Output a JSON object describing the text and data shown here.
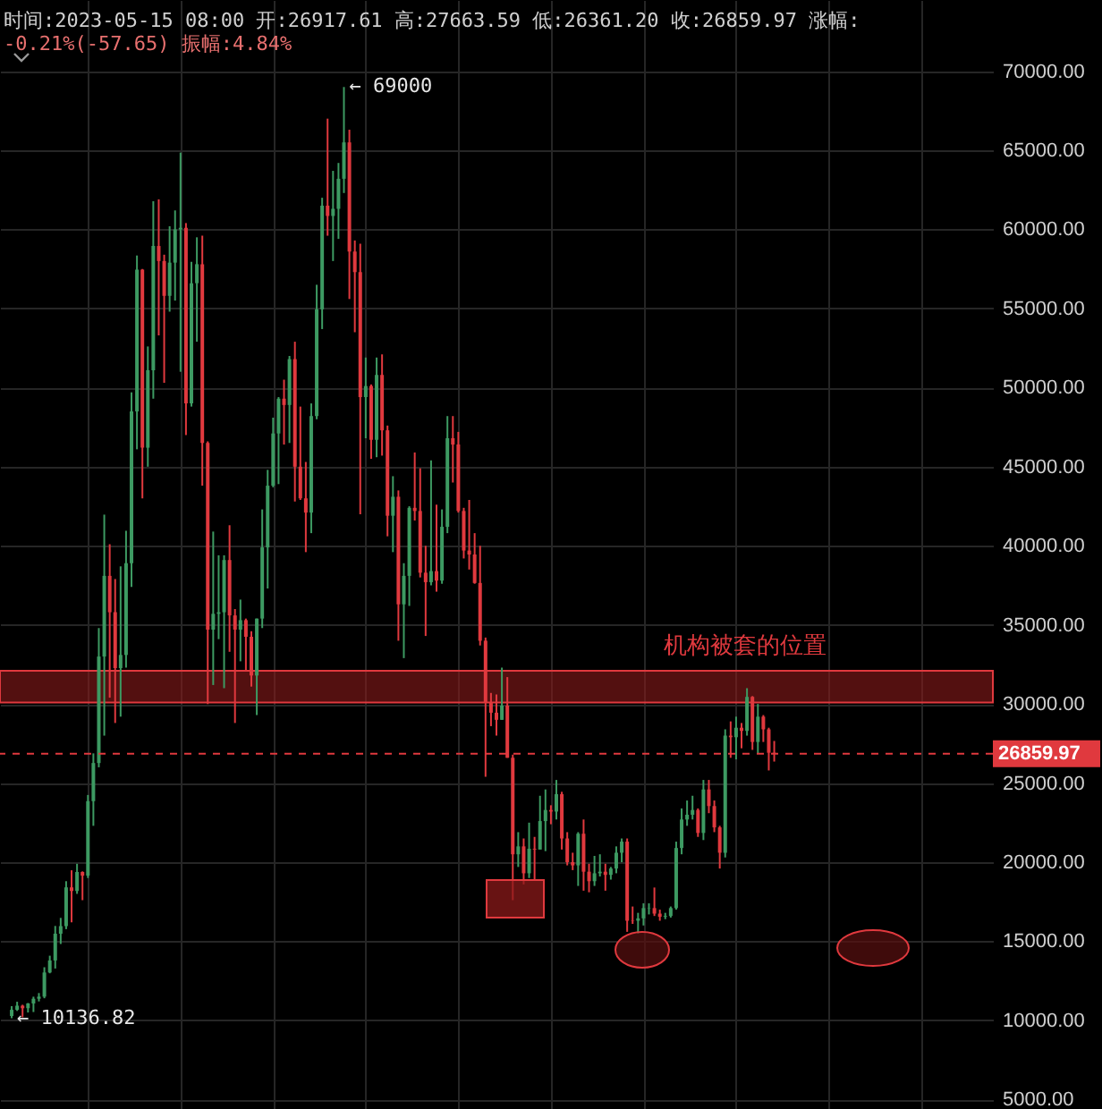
{
  "chart_data": {
    "type": "candlestick",
    "title": "时间:2023-05-15 08:00   开:26917.61   高:27663.59   低:26361.20   收:26859.97   涨幅:",
    "subtitle": "-0.21%(-57.65)   振幅:4.84%",
    "categories": [
      null,
      null,
      null,
      null,
      null,
      null,
      null,
      null,
      null,
      null,
      null,
      null,
      null,
      null,
      null,
      null,
      null,
      null,
      null,
      null,
      null,
      null,
      null,
      null,
      null,
      null,
      null,
      null,
      null,
      null,
      null,
      null,
      null,
      null,
      null,
      null,
      null,
      null,
      null,
      null,
      null,
      null,
      null,
      null,
      null,
      null,
      null,
      null,
      null,
      null,
      null,
      null,
      null,
      null,
      null,
      null,
      null,
      null,
      null,
      null,
      null,
      null,
      null,
      null,
      null,
      null,
      null,
      null,
      null,
      null,
      null,
      null,
      null,
      null,
      null,
      null,
      null,
      null,
      null,
      null,
      null,
      null,
      null,
      null,
      null,
      null,
      null,
      null,
      null,
      null,
      null,
      null,
      null,
      null,
      null,
      null,
      null,
      null,
      null,
      null,
      null,
      null,
      null,
      null,
      null,
      null,
      null,
      null,
      null,
      null,
      null,
      null,
      null,
      null,
      null,
      null,
      null,
      null,
      null,
      null,
      null,
      null,
      null,
      null,
      null,
      null,
      null,
      null,
      null,
      null,
      null,
      null,
      null,
      null,
      null,
      null,
      null,
      null,
      null,
      null,
      null,
      null,
      null,
      null,
      null,
      null,
      null,
      null,
      null,
      null,
      null,
      null,
      null,
      null,
      null,
      null,
      null,
      null,
      null,
      null,
      null,
      null,
      null,
      null,
      null,
      null,
      null,
      null,
      null,
      null,
      null,
      null,
      null,
      null,
      null,
      null,
      null,
      null,
      null
    ],
    "ohlc": [
      [
        10280,
        10900,
        10136.82,
        10670
      ],
      [
        10670,
        11180,
        10600,
        10930
      ],
      [
        10930,
        10990,
        10200,
        10770
      ],
      [
        10770,
        11100,
        10500,
        11070
      ],
      [
        11070,
        11500,
        10530,
        11370
      ],
      [
        11370,
        11730,
        11200,
        11500
      ],
      [
        11500,
        13360,
        11400,
        13030
      ],
      [
        13030,
        14090,
        12980,
        13790
      ],
      [
        13790,
        15970,
        13280,
        15480
      ],
      [
        15480,
        16480,
        14830,
        15960
      ],
      [
        15960,
        18800,
        15770,
        18410
      ],
      [
        18410,
        19490,
        16200,
        18180
      ],
      [
        18180,
        19900,
        18000,
        19380
      ],
      [
        19380,
        19420,
        17600,
        19150
      ],
      [
        19150,
        24250,
        19000,
        23860
      ],
      [
        23860,
        26880,
        22300,
        26270
      ],
      [
        26270,
        34800,
        26000,
        33000
      ],
      [
        33000,
        41970,
        28000,
        38100
      ],
      [
        38100,
        40100,
        30400,
        35800
      ],
      [
        35800,
        37900,
        28800,
        32270
      ],
      [
        32270,
        38700,
        29200,
        33100
      ],
      [
        33100,
        40950,
        32300,
        38900
      ],
      [
        38900,
        49700,
        37400,
        48500
      ],
      [
        48500,
        58350,
        46100,
        57450
      ],
      [
        57450,
        57500,
        43000,
        46200
      ],
      [
        46200,
        52600,
        45000,
        51100
      ],
      [
        51100,
        61780,
        49300,
        58950
      ],
      [
        58950,
        61900,
        53300,
        58000
      ],
      [
        58000,
        58400,
        50300,
        55800
      ],
      [
        55800,
        60200,
        54800,
        57900
      ],
      [
        57900,
        61200,
        55500,
        60000
      ],
      [
        60000,
        64854,
        51000,
        60100
      ],
      [
        60100,
        60400,
        47000,
        49000
      ],
      [
        49000,
        57950,
        48800,
        56600
      ],
      [
        56600,
        59500,
        52900,
        57800
      ],
      [
        57800,
        59600,
        43800,
        46500
      ],
      [
        46500,
        46600,
        30000,
        34700
      ],
      [
        34700,
        40900,
        31200,
        35700
      ],
      [
        35700,
        39400,
        34100,
        35800
      ],
      [
        35800,
        39400,
        31000,
        39100
      ],
      [
        39100,
        41300,
        33300,
        35600
      ],
      [
        35600,
        36000,
        28800,
        34700
      ],
      [
        34700,
        36600,
        32700,
        35300
      ],
      [
        35300,
        35400,
        32100,
        34250
      ],
      [
        34250,
        34600,
        31100,
        31800
      ],
      [
        31800,
        35400,
        29300,
        35400
      ],
      [
        35400,
        42300,
        34800,
        39900
      ],
      [
        39900,
        44800,
        37300,
        43800
      ],
      [
        43800,
        48100,
        43700,
        47100
      ],
      [
        47100,
        49400,
        43900,
        49300
      ],
      [
        49300,
        50500,
        46400,
        48900
      ],
      [
        48900,
        52000,
        46500,
        51800
      ],
      [
        51800,
        52900,
        42800,
        45000
      ],
      [
        45000,
        48800,
        42900,
        43000
      ],
      [
        43000,
        45300,
        39600,
        42100
      ],
      [
        42100,
        49000,
        40800,
        48200
      ],
      [
        48200,
        56500,
        48000,
        54950
      ],
      [
        54950,
        62000,
        53700,
        61500
      ],
      [
        61500,
        67000,
        59600,
        60850
      ],
      [
        60850,
        63700,
        58000,
        61300
      ],
      [
        61300,
        64200,
        59400,
        63200
      ],
      [
        63200,
        69000,
        62300,
        65500
      ],
      [
        65500,
        66300,
        55600,
        58600
      ],
      [
        58600,
        59300,
        53500,
        57300
      ],
      [
        57300,
        59100,
        42000,
        49400
      ],
      [
        49400,
        51900,
        46800,
        50100
      ],
      [
        50100,
        50200,
        45500,
        46700
      ],
      [
        46700,
        51900,
        45600,
        50800
      ],
      [
        50800,
        52100,
        45700,
        47300
      ],
      [
        47300,
        47600,
        40600,
        41900
      ],
      [
        41900,
        44400,
        39600,
        43100
      ],
      [
        43100,
        43500,
        34000,
        36300
      ],
      [
        36300,
        38900,
        32900,
        38100
      ],
      [
        38100,
        42500,
        36200,
        42400
      ],
      [
        42400,
        45900,
        41600,
        42200
      ],
      [
        42200,
        44900,
        38000,
        38300
      ],
      [
        38300,
        40000,
        34300,
        37700
      ],
      [
        37700,
        45400,
        37500,
        38400
      ],
      [
        38400,
        42600,
        37100,
        37800
      ],
      [
        37800,
        42300,
        37600,
        41200
      ],
      [
        41200,
        48200,
        40800,
        46800
      ],
      [
        46800,
        48200,
        44000,
        46400
      ],
      [
        46400,
        47200,
        42100,
        42200
      ],
      [
        42200,
        42400,
        39200,
        39700
      ],
      [
        39700,
        42900,
        38500,
        39450
      ],
      [
        39450,
        40800,
        37600,
        37650
      ],
      [
        37650,
        40000,
        33700,
        34000
      ],
      [
        34000,
        34200,
        25400,
        30100
      ],
      [
        30100,
        30700,
        28600,
        29450
      ],
      [
        29450,
        30600,
        28000,
        29000
      ],
      [
        29000,
        32300,
        29000,
        29900
      ],
      [
        29900,
        31700,
        26600,
        26600
      ],
      [
        26600,
        26800,
        17600,
        20500
      ],
      [
        20500,
        21900,
        19700,
        21000
      ],
      [
        21000,
        21500,
        18600,
        19300
      ],
      [
        19300,
        22500,
        19000,
        20850
      ],
      [
        20850,
        21600,
        18900,
        20800
      ],
      [
        20800,
        24200,
        20800,
        22600
      ],
      [
        22600,
        24600,
        20700,
        23300
      ],
      [
        23300,
        23600,
        22400,
        23200
      ],
      [
        23200,
        25200,
        22700,
        24300
      ],
      [
        24300,
        24450,
        20800,
        21500
      ],
      [
        21500,
        21900,
        19800,
        20000
      ],
      [
        20000,
        20600,
        19500,
        19800
      ],
      [
        19800,
        21900,
        18500,
        21800
      ],
      [
        21800,
        22700,
        18200,
        19400
      ],
      [
        19400,
        19900,
        18100,
        18800
      ],
      [
        18800,
        20400,
        18500,
        19300
      ],
      [
        19300,
        20500,
        19100,
        19400
      ],
      [
        19400,
        19900,
        18200,
        19200
      ],
      [
        19200,
        19700,
        18900,
        19600
      ],
      [
        19600,
        21000,
        19300,
        20600
      ],
      [
        20600,
        21500,
        20000,
        21300
      ],
      [
        21300,
        21500,
        15600,
        16300
      ],
      [
        16300,
        17200,
        16100,
        16280
      ],
      [
        16300,
        16800,
        15480,
        16450
      ],
      [
        16450,
        17400,
        16000,
        17100
      ],
      [
        17100,
        17400,
        16700,
        17120
      ],
      [
        17100,
        18400,
        16600,
        16750
      ],
      [
        16750,
        17000,
        16300,
        16550
      ],
      [
        16550,
        16800,
        16400,
        16600
      ],
      [
        16600,
        17200,
        16500,
        17100
      ],
      [
        17100,
        21300,
        17000,
        20900
      ],
      [
        20900,
        23400,
        20500,
        22700
      ],
      [
        22700,
        23900,
        22300,
        23000
      ],
      [
        23000,
        24200,
        22700,
        23300
      ],
      [
        23300,
        23400,
        21600,
        21850
      ],
      [
        21850,
        25200,
        21400,
        24600
      ],
      [
        24600,
        25200,
        23100,
        23550
      ],
      [
        23550,
        23900,
        21900,
        22200
      ],
      [
        22200,
        22300,
        19600,
        20600
      ],
      [
        20600,
        28400,
        20300,
        28000
      ],
      [
        28000,
        28900,
        26600,
        27900
      ],
      [
        27900,
        29200,
        26500,
        28500
      ],
      [
        28500,
        28800,
        27200,
        28300
      ],
      [
        28300,
        31000,
        28000,
        30450
      ],
      [
        30450,
        30500,
        27100,
        27600
      ],
      [
        27600,
        30000,
        26900,
        29200
      ],
      [
        29200,
        29300,
        27600,
        28400
      ],
      [
        28400,
        28500,
        25800,
        26917.61
      ],
      [
        26917.61,
        27663.59,
        26361.2,
        26859.97
      ],
      null,
      null,
      null,
      null,
      null,
      null,
      null,
      null,
      null,
      null,
      null,
      null,
      null,
      null,
      null,
      null,
      null,
      null,
      null,
      null,
      null,
      null,
      null,
      null,
      null,
      null,
      null,
      null,
      null,
      null,
      null,
      null,
      null,
      null,
      null,
      null,
      null,
      null
    ],
    "ylim": [
      4400,
      74500
    ],
    "yticks": [
      {
        "value": 5000,
        "label": "5000.00"
      },
      {
        "value": 10000,
        "label": "10000.00"
      },
      {
        "value": 15000,
        "label": "15000.00"
      },
      {
        "value": 20000,
        "label": "20000.00"
      },
      {
        "value": 25000,
        "label": "25000.00"
      },
      {
        "value": 30000,
        "label": "30000.00"
      },
      {
        "value": 35000,
        "label": "35000.00"
      },
      {
        "value": 40000,
        "label": "40000.00"
      },
      {
        "value": 45000,
        "label": "45000.00"
      },
      {
        "value": 50000,
        "label": "50000.00"
      },
      {
        "value": 55000,
        "label": "55000.00"
      },
      {
        "value": 60000,
        "label": "60000.00"
      },
      {
        "value": 65000,
        "label": "65000.00"
      },
      {
        "value": 70000,
        "label": "70000.00"
      }
    ],
    "ref_lines": [
      {
        "axis": "y",
        "value": 26859.97,
        "label": "26859.97",
        "color": "#e0393e",
        "line_style": "dashed"
      }
    ],
    "bands": [
      {
        "axis": "y",
        "from": 30100,
        "to": 32100,
        "label": "机构被套的位置",
        "color": "#8b1a1a"
      }
    ],
    "annotations": [
      "← 69000",
      "← 10136.82"
    ],
    "grid": true,
    "tick_labels": "y"
  }
}
